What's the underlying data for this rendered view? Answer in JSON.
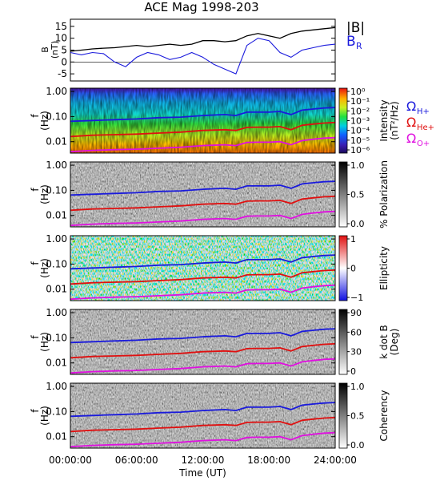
{
  "chart_data": [
    {
      "panel": "B",
      "type": "line",
      "title": "ACE Mag 1998-203",
      "ylabel": "B",
      "ylabel_unit": "(nT)",
      "ylim": [
        -8,
        18
      ],
      "yticks": [
        15,
        10,
        5,
        0,
        -5
      ],
      "xlim": [
        0,
        24
      ],
      "legend": [
        {
          "name": "|B|",
          "color": "#000000"
        },
        {
          "name": "B",
          "sub": "R",
          "color": "#1a1adc"
        }
      ],
      "series": [
        {
          "name": "|B|",
          "color": "#000000",
          "x": [
            0,
            1,
            2,
            3,
            4,
            5,
            6,
            7,
            8,
            9,
            10,
            11,
            12,
            13,
            14,
            15,
            16,
            17,
            18,
            19,
            20,
            21,
            22,
            23,
            24
          ],
          "y": [
            4.5,
            5,
            5.5,
            5.8,
            6,
            6.5,
            7,
            6.5,
            7,
            7.5,
            7,
            7.5,
            9,
            9,
            8.5,
            9,
            11,
            12,
            11,
            10,
            12,
            13,
            13.5,
            14,
            14.5
          ]
        },
        {
          "name": "B_R",
          "color": "#1a1adc",
          "x": [
            0,
            1,
            2,
            3,
            4,
            5,
            6,
            7,
            8,
            9,
            10,
            11,
            12,
            13,
            14,
            15,
            16,
            17,
            18,
            19,
            20,
            21,
            22,
            23,
            24
          ],
          "y": [
            4,
            3,
            4,
            3.5,
            0,
            -2,
            2,
            4,
            3,
            1,
            2,
            4,
            2,
            -1,
            -3,
            -5,
            7,
            10,
            9,
            4,
            2,
            5,
            6,
            7,
            7.5
          ]
        }
      ]
    },
    {
      "panel": "intensity",
      "type": "heatmap",
      "ylabel": "f",
      "ylabel_unit": "(Hz)",
      "yscale": "log",
      "yticks": [
        "1.00",
        "0.10",
        "0.01"
      ],
      "colorbar": {
        "label": "Intensity",
        "unit": "(nT²/Hz)",
        "ticks": [
          "10⁰",
          "10⁻¹",
          "10⁻²",
          "10⁻³",
          "10⁻⁴",
          "10⁻⁵",
          "10⁻⁶"
        ],
        "colormap": "rainbow"
      },
      "legend": [
        {
          "symbol": "Ω",
          "sub": "H+",
          "color": "#1a1adc"
        },
        {
          "symbol": "Ω",
          "sub": "He+",
          "color": "#e01010"
        },
        {
          "symbol": "Ω",
          "sub": "O+",
          "color": "#e010e0"
        }
      ]
    },
    {
      "panel": "polarization",
      "type": "heatmap",
      "ylabel": "f",
      "ylabel_unit": "(Hz)",
      "yscale": "log",
      "yticks": [
        "1.00",
        "0.10",
        "0.01"
      ],
      "colorbar": {
        "label": "% Polarization",
        "ticks": [
          "1.0",
          "0.5",
          "0.0"
        ],
        "colormap": "gray"
      }
    },
    {
      "panel": "ellipticity",
      "type": "heatmap",
      "ylabel": "f",
      "ylabel_unit": "(Hz)",
      "yscale": "log",
      "yticks": [
        "1.00",
        "0.10",
        "0.01"
      ],
      "colorbar": {
        "label": "Ellipticity",
        "ticks": [
          "1",
          "0",
          "−1"
        ],
        "colormap": "blue-white-red"
      }
    },
    {
      "panel": "kdotb",
      "type": "heatmap",
      "ylabel": "f",
      "ylabel_unit": "(Hz)",
      "yscale": "log",
      "yticks": [
        "1.00",
        "0.10",
        "0.01"
      ],
      "colorbar": {
        "label": "k dot B",
        "unit": "(Deg)",
        "ticks": [
          "90",
          "60",
          "30",
          "0"
        ],
        "colormap": "gray"
      }
    },
    {
      "panel": "coherency",
      "type": "heatmap",
      "ylabel": "f",
      "ylabel_unit": "(Hz)",
      "yscale": "log",
      "yticks": [
        "1.00",
        "0.10",
        "0.01"
      ],
      "colorbar": {
        "label": "Coherency",
        "ticks": [
          "1.0",
          "0.5",
          "0.0"
        ],
        "colormap": "gray"
      }
    }
  ],
  "gyro_lines": [
    {
      "name": "H+",
      "color": "#1a1adc",
      "x": [
        0,
        2,
        4,
        6,
        8,
        10,
        12,
        14,
        15,
        16,
        17,
        18,
        19,
        20,
        21,
        22,
        23,
        24
      ],
      "y": [
        0.065,
        0.07,
        0.075,
        0.08,
        0.09,
        0.095,
        0.11,
        0.12,
        0.11,
        0.15,
        0.15,
        0.15,
        0.16,
        0.12,
        0.18,
        0.2,
        0.22,
        0.23
      ]
    },
    {
      "name": "He+",
      "color": "#e01010",
      "x": [
        0,
        2,
        4,
        6,
        8,
        10,
        12,
        14,
        15,
        16,
        17,
        18,
        19,
        20,
        21,
        22,
        23,
        24
      ],
      "y": [
        0.016,
        0.018,
        0.019,
        0.02,
        0.022,
        0.024,
        0.028,
        0.03,
        0.028,
        0.037,
        0.038,
        0.038,
        0.04,
        0.03,
        0.045,
        0.05,
        0.055,
        0.058
      ]
    },
    {
      "name": "O+",
      "color": "#e010e0",
      "x": [
        0,
        2,
        4,
        6,
        8,
        10,
        12,
        14,
        15,
        16,
        17,
        18,
        19,
        20,
        21,
        22,
        23,
        24
      ],
      "y": [
        0.004,
        0.0045,
        0.0048,
        0.005,
        0.0055,
        0.006,
        0.007,
        0.0075,
        0.007,
        0.0093,
        0.0095,
        0.0095,
        0.01,
        0.0075,
        0.011,
        0.0125,
        0.0138,
        0.0145
      ]
    }
  ],
  "xaxis": {
    "label": "Time (UT)",
    "ticks": [
      "00:00:00",
      "06:00:00",
      "12:00:00",
      "18:00:00",
      "24:00:00"
    ]
  }
}
